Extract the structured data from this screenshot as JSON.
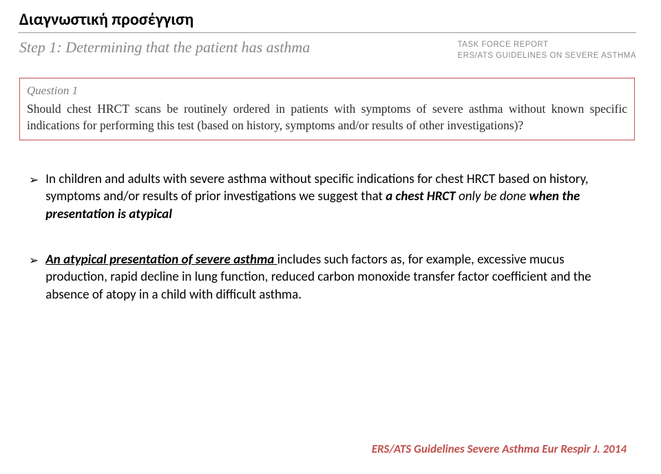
{
  "title": "Διαγνωστική προσέγγιση",
  "step": {
    "label": "Step 1: Determining that the patient has asthma",
    "report_line1": "TASK FORCE REPORT",
    "report_line2": "ERS/ATS GUIDELINES ON SEVERE ASTHMA"
  },
  "question": {
    "label": "Question 1",
    "text": "Should chest HRCT scans be routinely ordered in patients with symptoms of severe asthma without known specific indications for performing this test (based on history, symptoms and/or results of other investigations)?"
  },
  "bullets": [
    {
      "pre": "In children and adults with severe asthma without specific indications for chest HRCT based on history, symptoms and/or results of prior investigations we suggest that ",
      "em": "a chest HRCT",
      "mid": " only be done ",
      "em2": "when the presentation is atypical"
    },
    {
      "uem": "An atypical presentation of severe asthma ",
      "post": "includes such factors as, for example, excessive mucus production, rapid decline in lung function, reduced carbon monoxide transfer factor coefficient and the absence of atopy in a child with difficult asthma."
    }
  ],
  "citation": "ERS/ATS Guidelines Severe Asthma Eur Respir J. 2014",
  "colors": {
    "accent_red": "#c0504d",
    "gray_text": "#888789"
  }
}
